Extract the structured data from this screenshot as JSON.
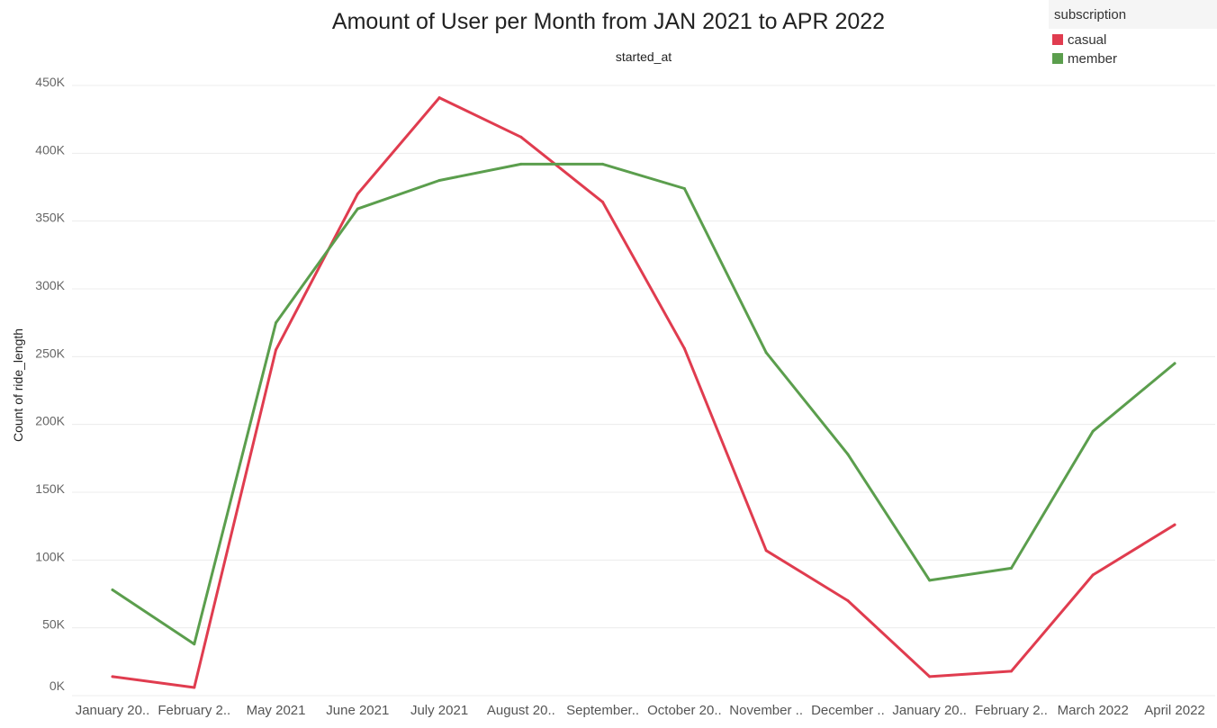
{
  "chart_data": {
    "type": "line",
    "title": "Amount of User per Month from JAN 2021 to APR 2022",
    "column_header": "started_at",
    "xlabel": "",
    "ylabel": "Count of ride_length",
    "categories": [
      "January 20..",
      "February 2..",
      "May 2021",
      "June 2021",
      "July 2021",
      "August 20..",
      "September..",
      "October 20..",
      "November ..",
      "December ..",
      "January 20..",
      "February 2..",
      "March 2022",
      "April 2022"
    ],
    "ylim": [
      0,
      460000
    ],
    "yticks": [
      0,
      50000,
      100000,
      150000,
      200000,
      250000,
      300000,
      350000,
      400000,
      450000
    ],
    "ytick_labels": [
      "0K",
      "50K",
      "100K",
      "150K",
      "200K",
      "250K",
      "300K",
      "350K",
      "400K",
      "450K"
    ],
    "grid": true,
    "legend": {
      "title": "subscription",
      "position": "top-right"
    },
    "series": [
      {
        "name": "casual",
        "color": "#e03c4f",
        "values": [
          14000,
          6000,
          255000,
          370000,
          441000,
          412000,
          364000,
          256000,
          107000,
          70000,
          14000,
          18000,
          89000,
          126000
        ]
      },
      {
        "name": "member",
        "color": "#5b9e4d",
        "values": [
          78000,
          38000,
          275000,
          359000,
          380000,
          392000,
          392000,
          374000,
          253000,
          178000,
          85000,
          94000,
          195000,
          245000
        ]
      }
    ]
  }
}
